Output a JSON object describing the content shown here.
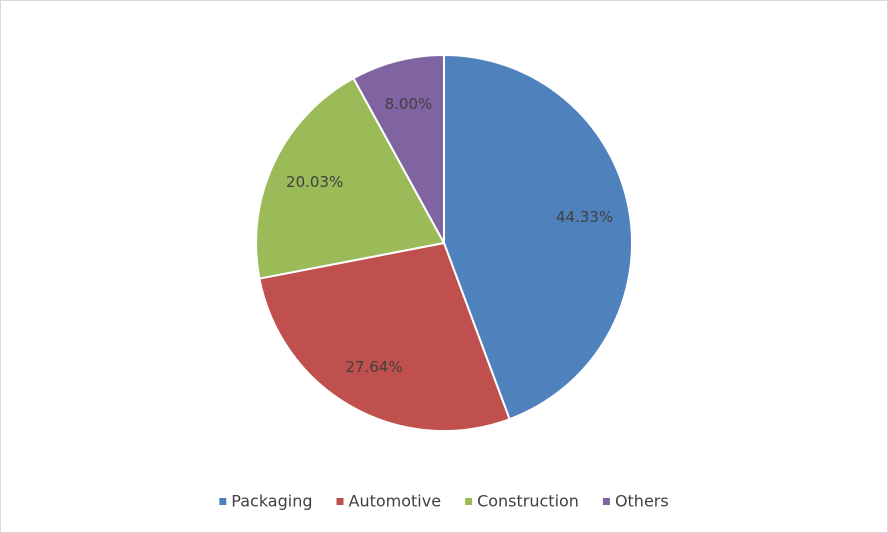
{
  "chart_data": {
    "type": "pie",
    "categories": [
      "Packaging",
      "Automotive",
      "Construction",
      "Others"
    ],
    "values": [
      44.33,
      27.64,
      20.03,
      8.0
    ],
    "value_labels": [
      "44.33%",
      "27.64%",
      "20.03%",
      "8.00%"
    ],
    "colors": [
      "#4f81bd",
      "#c0504d",
      "#9bbb59",
      "#8064a2"
    ],
    "legend": "bottom"
  }
}
